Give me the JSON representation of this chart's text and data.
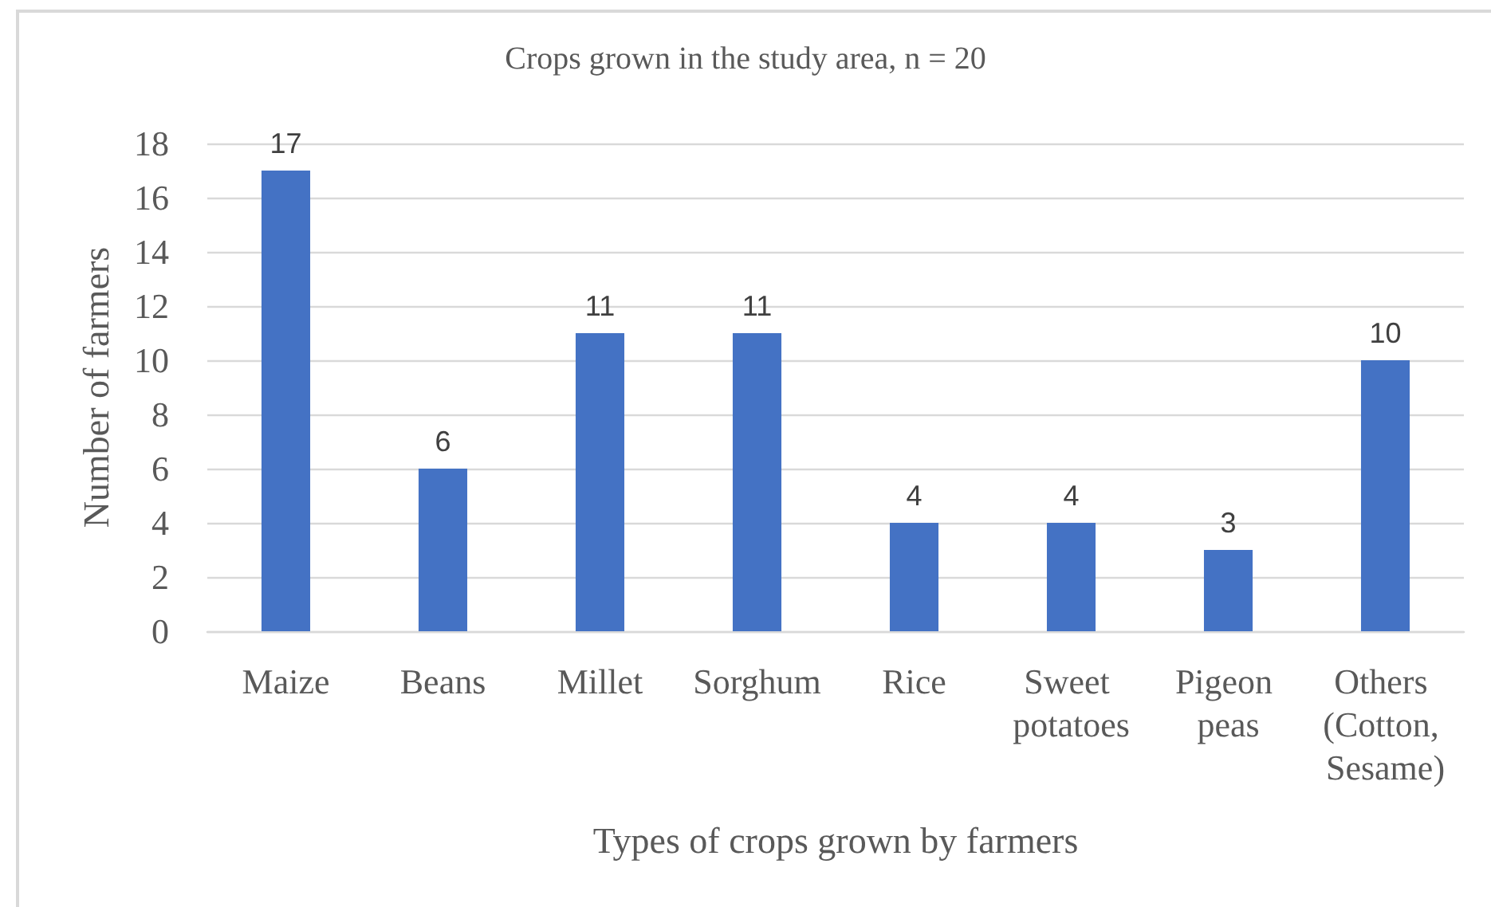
{
  "chart_data": {
    "type": "bar",
    "title": "Crops grown in the study area, n = 20",
    "xlabel": "Types of crops grown by farmers",
    "ylabel": "Number of farmers",
    "categories": [
      "Maize",
      "Beans",
      "Millet",
      "Sorghum",
      "Rice",
      "Sweet potatoes",
      "Pigeon peas",
      "Others (Cotton, Sesame)"
    ],
    "values": [
      17,
      6,
      11,
      11,
      4,
      4,
      3,
      10
    ],
    "color": "#4472c4",
    "ylim": [
      0,
      18
    ],
    "yticks": [
      0,
      2,
      4,
      6,
      8,
      10,
      12,
      14,
      16,
      18
    ],
    "grid": "y",
    "data_labels": true
  }
}
